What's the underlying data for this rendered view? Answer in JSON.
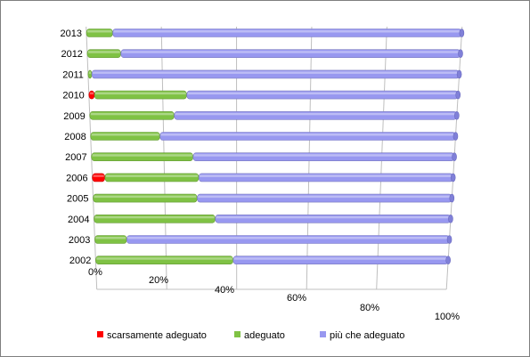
{
  "chart_data": {
    "type": "bar",
    "orientation": "horizontal",
    "stacked": "percent",
    "three_d": true,
    "categories": [
      "2002",
      "2003",
      "2004",
      "2005",
      "2006",
      "2007",
      "2008",
      "2009",
      "2010",
      "2011",
      "2012",
      "2013"
    ],
    "series": [
      {
        "name": "scarsamente adeguato",
        "color": "#ff0000",
        "values": [
          0,
          0,
          0,
          0,
          3.5,
          0,
          0,
          0,
          1.5,
          0,
          0,
          0
        ]
      },
      {
        "name": "adeguato",
        "color": "#7fc244",
        "values": [
          39,
          9,
          34,
          29,
          26,
          28,
          19,
          23,
          25,
          1,
          9,
          7
        ]
      },
      {
        "name": "più che adeguato",
        "color": "#9898f0",
        "values": [
          61,
          91,
          66,
          71,
          70.5,
          72,
          81,
          77,
          73.5,
          99,
          91,
          93
        ]
      }
    ],
    "x_ticks": [
      "0%",
      "20%",
      "40%",
      "60%",
      "80%",
      "100%"
    ],
    "xlim": [
      0,
      100
    ],
    "grid": true,
    "legend_position": "bottom"
  }
}
